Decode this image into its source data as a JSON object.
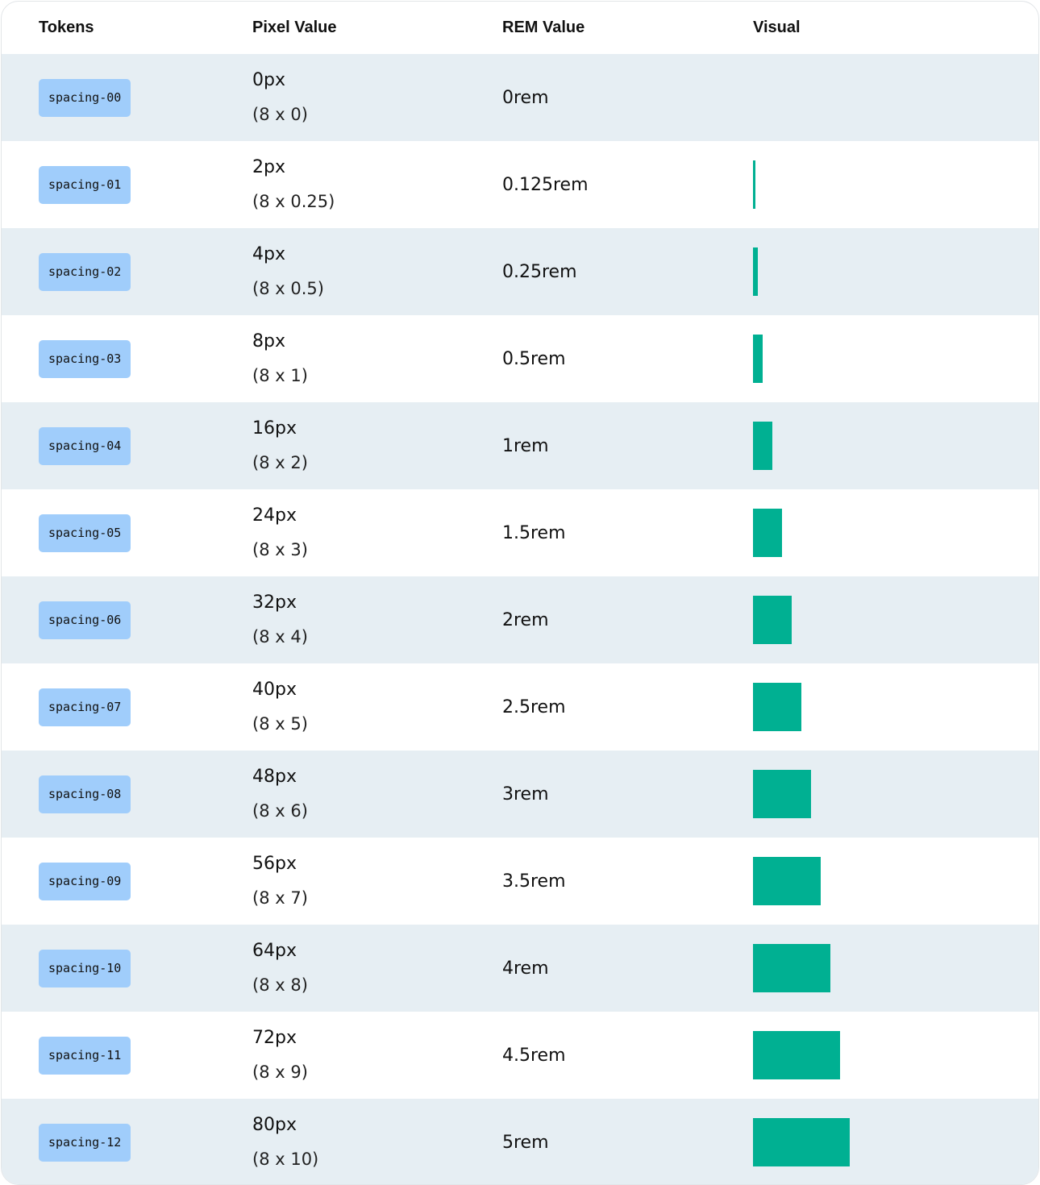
{
  "headers": {
    "tokens": "Tokens",
    "pixel": "Pixel Value",
    "rem": "REM Value",
    "visual": "Visual"
  },
  "bar_color": "#00b092",
  "rows": [
    {
      "token": "spacing-00",
      "px": "0px",
      "mult": "(8 x 0)",
      "rem": "0rem"
    },
    {
      "token": "spacing-01",
      "px": "2px",
      "mult": "(8 x 0.25)",
      "rem": "0.125rem"
    },
    {
      "token": "spacing-02",
      "px": "4px",
      "mult": "(8 x 0.5)",
      "rem": "0.25rem"
    },
    {
      "token": "spacing-03",
      "px": "8px",
      "mult": "(8 x 1)",
      "rem": "0.5rem"
    },
    {
      "token": "spacing-04",
      "px": "16px",
      "mult": "(8 x 2)",
      "rem": "1rem"
    },
    {
      "token": "spacing-05",
      "px": "24px",
      "mult": "(8 x 3)",
      "rem": "1.5rem"
    },
    {
      "token": "spacing-06",
      "px": "32px",
      "mult": "(8 x 4)",
      "rem": "2rem"
    },
    {
      "token": "spacing-07",
      "px": "40px",
      "mult": "(8 x 5)",
      "rem": "2.5rem"
    },
    {
      "token": "spacing-08",
      "px": "48px",
      "mult": "(8 x 6)",
      "rem": "3rem"
    },
    {
      "token": "spacing-09",
      "px": "56px",
      "mult": "(8 x 7)",
      "rem": "3.5rem"
    },
    {
      "token": "spacing-10",
      "px": "64px",
      "mult": "(8 x 8)",
      "rem": "4rem"
    },
    {
      "token": "spacing-11",
      "px": "72px",
      "mult": "(8 x 9)",
      "rem": "4.5rem"
    },
    {
      "token": "spacing-12",
      "px": "80px",
      "mult": "(8 x 10)",
      "rem": "5rem"
    }
  ]
}
